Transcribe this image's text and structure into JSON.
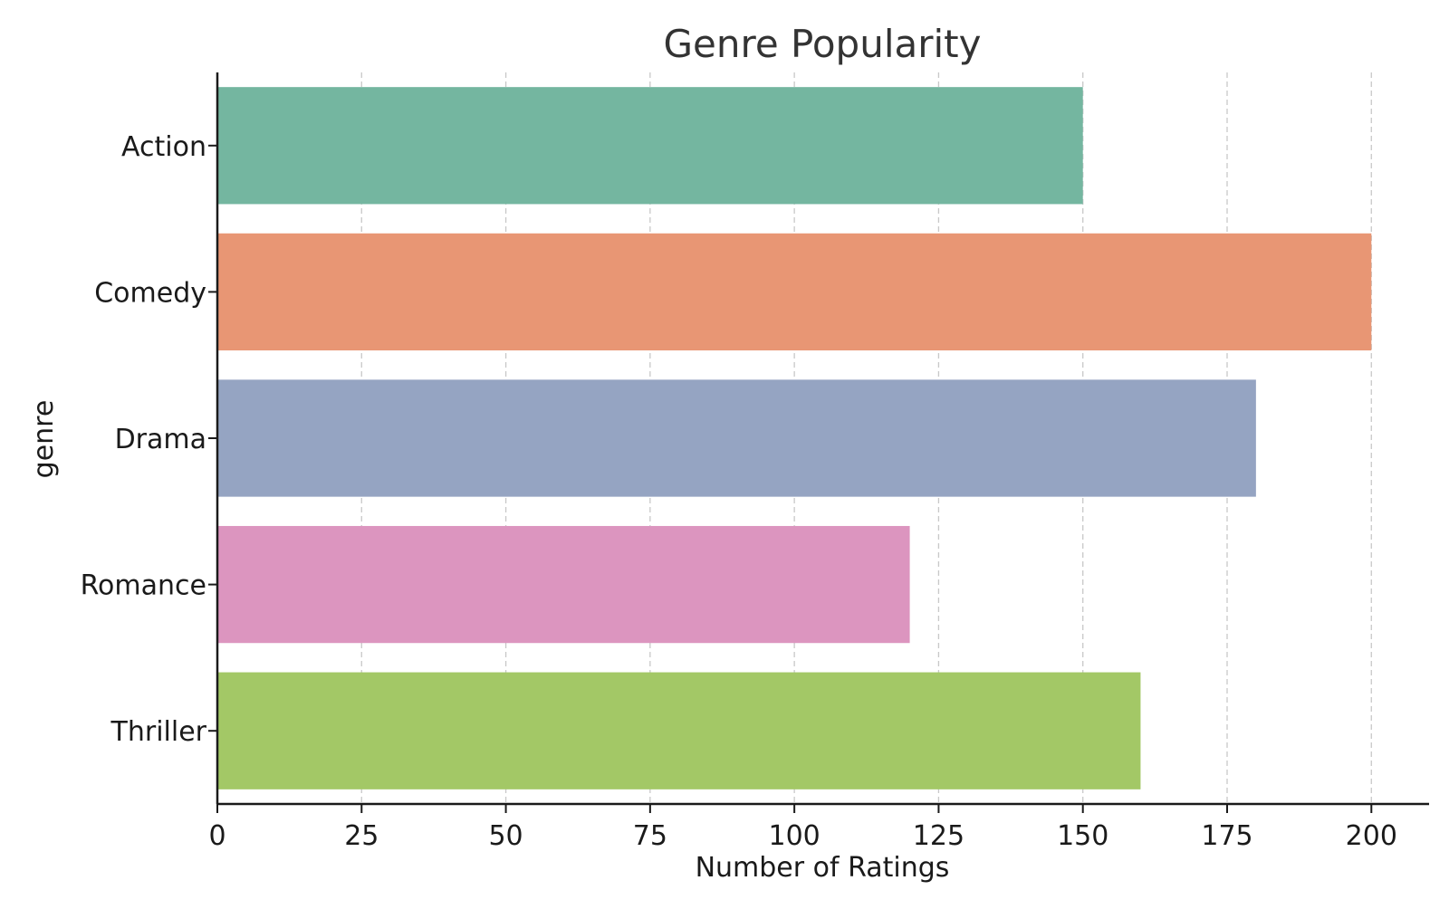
{
  "chart_data": {
    "type": "bar",
    "orientation": "horizontal",
    "title": "Genre Popularity",
    "xlabel": "Number of Ratings",
    "ylabel": "genre",
    "categories": [
      "Action",
      "Comedy",
      "Drama",
      "Romance",
      "Thriller"
    ],
    "values": [
      150,
      200,
      180,
      120,
      160
    ],
    "colors": [
      "#74b6a0",
      "#e89674",
      "#95a4c2",
      "#dc95bf",
      "#a3c866"
    ],
    "xlim": [
      0,
      210
    ],
    "xticks": [
      0,
      25,
      50,
      75,
      100,
      125,
      150,
      175,
      200
    ],
    "grid": "vertical dashed",
    "legend": "none"
  }
}
